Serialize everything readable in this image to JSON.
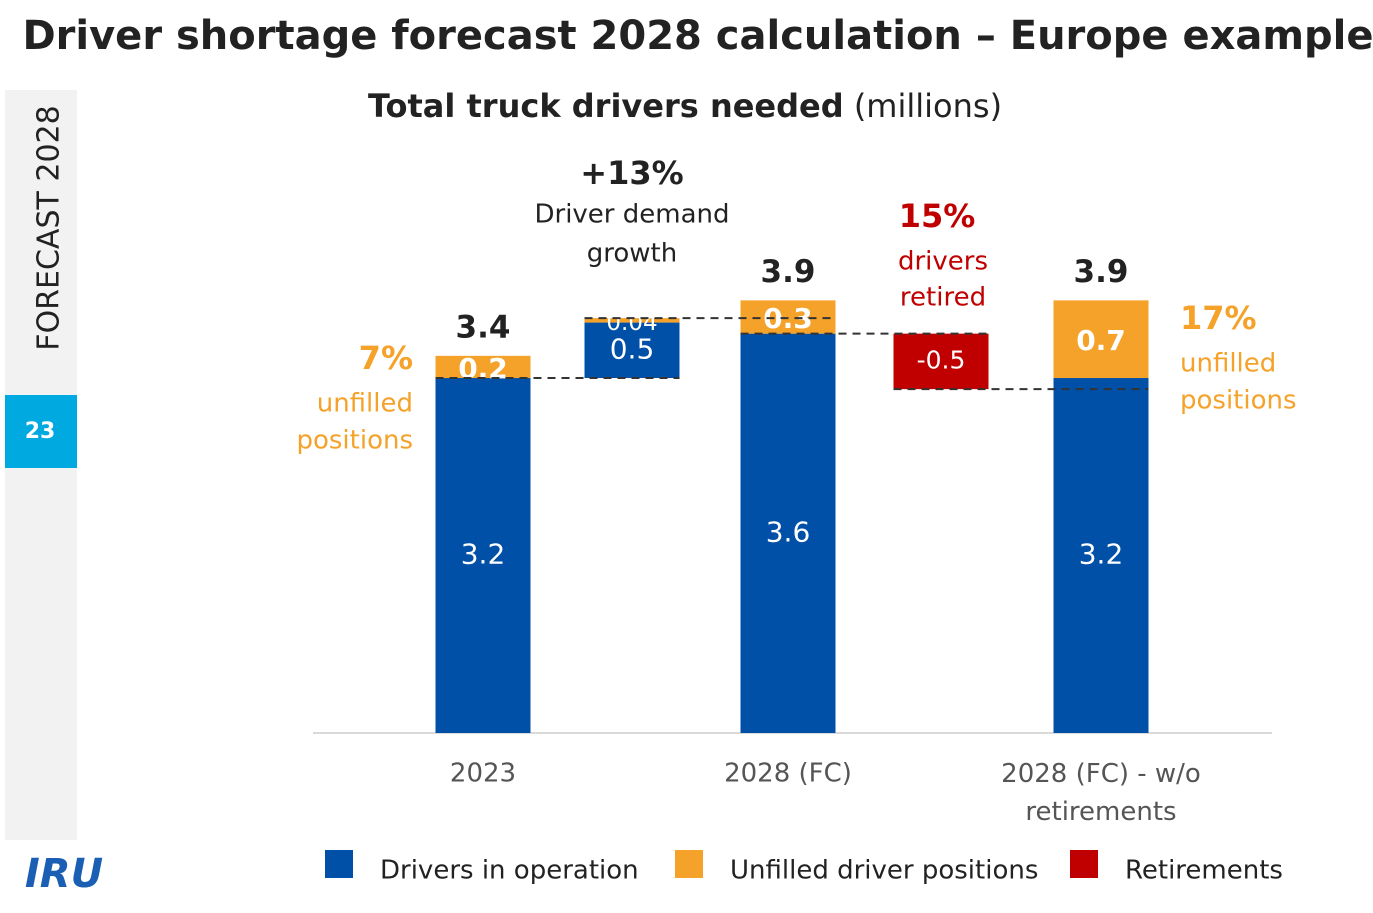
{
  "header": {
    "title": "Driver shortage forecast 2028 calculation – Europe example",
    "section": "FORECAST 2028",
    "page": "23",
    "logo": "IRU"
  },
  "chart_data": {
    "type": "waterfall",
    "title": "Total truck drivers needed",
    "title_unit": "(millions)",
    "categories": [
      "2023",
      null,
      "2028 (FC)",
      null,
      "2028 (FC) - w/o retirements"
    ],
    "series": [
      {
        "name": "Drivers in operation",
        "color": "#0050a8",
        "values": [
          3.2,
          0.5,
          3.6,
          null,
          3.2
        ]
      },
      {
        "name": "Unfilled driver positions",
        "color": "#f5a22a",
        "values": [
          0.2,
          0.04,
          0.3,
          null,
          0.7
        ]
      },
      {
        "name": "Retirements",
        "color": "#c00000",
        "values": [
          null,
          null,
          null,
          -0.5,
          null
        ]
      }
    ],
    "totals": [
      3.4,
      null,
      3.9,
      null,
      3.9
    ],
    "ylim": [
      0,
      4.3
    ],
    "annotations": [
      {
        "label": "7%",
        "lines": [
          "unfilled",
          "positions"
        ],
        "color": "#f5a22a"
      },
      {
        "label": "+13%",
        "lines": [
          "Driver demand",
          "growth"
        ],
        "color": "#222222"
      },
      {
        "label": "15%",
        "lines": [
          "drivers",
          "retired"
        ],
        "color": "#c00000"
      },
      {
        "label": "17%",
        "lines": [
          "unfilled",
          "positions"
        ],
        "color": "#f5a22a"
      }
    ]
  }
}
